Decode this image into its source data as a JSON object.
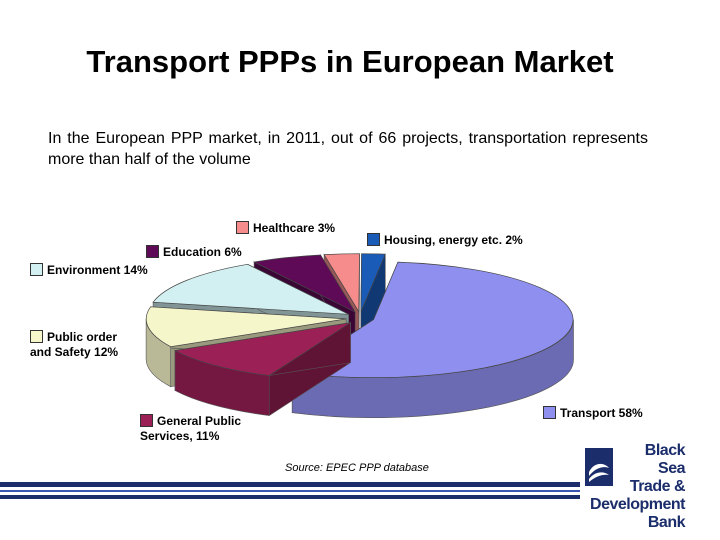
{
  "slide": {
    "title": "Transport PPPs in European Market",
    "subtitle": "In the European PPP market, in 2011, out of 66 projects, transportation represents more than half of the volume",
    "source": "Source: EPEC PPP database",
    "logo_lines": [
      "Black",
      "Sea",
      "Trade &",
      "Development",
      "Bank"
    ]
  },
  "colors": {
    "bar_dark": "#1b2d6b",
    "bar_light": "#3a56b0"
  },
  "chart_data": {
    "type": "pie",
    "title": "",
    "style": "3d exploded",
    "unit": "%",
    "slices": [
      {
        "label": "Transport",
        "display": "Transport 58%",
        "value": 58,
        "color": "#8f8ff0"
      },
      {
        "label": "General Public Services",
        "display": "General Public Services, 11%",
        "value": 11,
        "color": "#9b2056"
      },
      {
        "label": "Public order and Safety",
        "display": "Public order and Safety 12%",
        "value": 12,
        "color": "#f6f6cb"
      },
      {
        "label": "Environment",
        "display": "Environment 14%",
        "value": 14,
        "color": "#d2f0f2"
      },
      {
        "label": "Education",
        "display": "Education 6%",
        "value": 6,
        "color": "#5e0a56"
      },
      {
        "label": "Healthcare",
        "display": "Healthcare 3%",
        "value": 3,
        "color": "#f68c8c"
      },
      {
        "label": "Housing, energy etc.",
        "display": "Housing, energy etc. 2%",
        "value": 2,
        "color": "#1a5bb8"
      }
    ]
  }
}
